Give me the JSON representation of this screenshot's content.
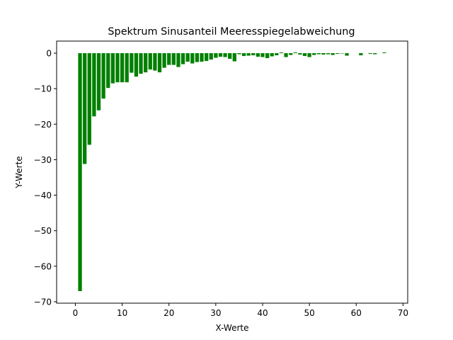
{
  "chart_data": {
    "type": "bar",
    "title": "Spektrum Sinusanteil Meeresspiegelabweichung",
    "xlabel": "X-Werte",
    "ylabel": "Y-Werte",
    "xlim": [
      -4,
      71
    ],
    "ylim": [
      -70.4,
      3.4
    ],
    "xticks": [
      0,
      10,
      20,
      30,
      40,
      50,
      60,
      70
    ],
    "yticks": [
      0,
      -10,
      -20,
      -30,
      -40,
      -50,
      -60,
      -70
    ],
    "grid": false,
    "bar_width": 0.8,
    "bar_color": "#008000",
    "x": [
      1,
      2,
      3,
      4,
      5,
      6,
      7,
      8,
      9,
      10,
      11,
      12,
      13,
      14,
      15,
      16,
      17,
      18,
      19,
      20,
      21,
      22,
      23,
      24,
      25,
      26,
      27,
      28,
      29,
      30,
      31,
      32,
      33,
      34,
      35,
      36,
      37,
      38,
      39,
      40,
      41,
      42,
      43,
      44,
      45,
      46,
      47,
      48,
      49,
      50,
      51,
      52,
      53,
      54,
      55,
      56,
      57,
      58,
      61,
      63,
      64,
      66
    ],
    "values": [
      -67.0,
      -31.2,
      -25.8,
      -17.8,
      -16.1,
      -12.8,
      -9.8,
      -8.5,
      -8.2,
      -8.2,
      -8.2,
      -5.5,
      -6.6,
      -5.8,
      -5.4,
      -4.6,
      -4.9,
      -5.4,
      -4.1,
      -3.3,
      -3.3,
      -3.9,
      -3.1,
      -2.4,
      -2.9,
      -2.5,
      -2.4,
      -2.2,
      -1.8,
      -1.3,
      -1.0,
      -1.1,
      -1.6,
      -2.3,
      -0.3,
      -0.8,
      -0.7,
      -0.6,
      -1.0,
      -1.1,
      -1.4,
      -0.9,
      -0.6,
      0.2,
      -1.1,
      -0.5,
      0.2,
      -0.4,
      -0.8,
      -1.1,
      -0.5,
      -0.3,
      -0.4,
      -0.3,
      -0.5,
      -0.2,
      -0.1,
      -0.7,
      -0.6,
      -0.2,
      -0.3,
      0.2
    ]
  }
}
